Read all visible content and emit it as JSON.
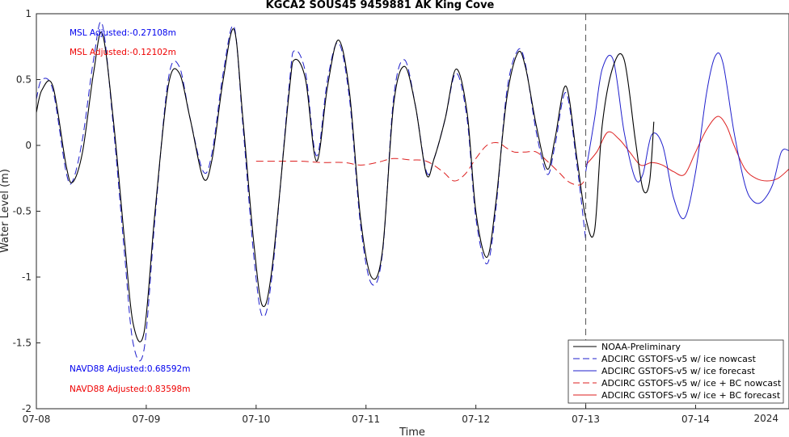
{
  "chart_data": {
    "type": "line",
    "title": "KGCA2 SOUS45 9459881 AK King Cove",
    "xlabel": "Time",
    "ylabel": "Water Level (m)",
    "xlim": [
      0,
      6.85
    ],
    "ylim": [
      -2,
      1
    ],
    "x_ticks": [
      {
        "value": 0,
        "label": "07-08"
      },
      {
        "value": 1,
        "label": "07-09"
      },
      {
        "value": 2,
        "label": "07-10"
      },
      {
        "value": 3,
        "label": "07-11"
      },
      {
        "value": 4,
        "label": "07-12"
      },
      {
        "value": 5,
        "label": "07-13"
      },
      {
        "value": 6,
        "label": "07-14"
      }
    ],
    "y_ticks": [
      {
        "value": 1,
        "label": "1"
      },
      {
        "value": 0.5,
        "label": "0.5"
      },
      {
        "value": 0,
        "label": "0"
      },
      {
        "value": -0.5,
        "label": "-0.5"
      },
      {
        "value": -1,
        "label": "-1"
      },
      {
        "value": -1.5,
        "label": "-1.5"
      },
      {
        "value": -2,
        "label": "-2"
      }
    ],
    "year_label": "2024",
    "nowcast_end": 5.0,
    "grid": false,
    "legend_position": "bottom-right",
    "annotations": [
      {
        "text": "MSL Adjusted:-0.27108m",
        "color": "#0000ee"
      },
      {
        "text": "MSL Adjusted:-0.12102m",
        "color": "#ee0000"
      },
      {
        "text": "NAVD88 Adjusted:0.68592m",
        "color": "#0000ee"
      },
      {
        "text": "NAVD88 Adjusted:0.83598m",
        "color": "#ee0000"
      }
    ],
    "series": [
      {
        "name": "NOAA-Preliminary",
        "color": "#000000",
        "dash": "solid",
        "width": 1.1,
        "x": [
          0,
          0.05,
          0.15,
          0.27,
          0.33,
          0.42,
          0.52,
          0.6,
          0.7,
          0.8,
          0.88,
          0.98,
          1.08,
          1.2,
          1.3,
          1.4,
          1.52,
          1.6,
          1.7,
          1.8,
          1.88,
          1.98,
          2.06,
          2.15,
          2.3,
          2.35,
          2.45,
          2.55,
          2.65,
          2.75,
          2.85,
          2.95,
          3.05,
          3.15,
          3.25,
          3.35,
          3.45,
          3.55,
          3.62,
          3.72,
          3.82,
          3.92,
          4.0,
          4.1,
          4.18,
          4.28,
          4.38,
          4.45,
          4.55,
          4.65,
          4.72,
          4.82,
          4.92,
          5.0,
          5.08,
          5.15,
          5.25,
          5.35,
          5.45,
          5.52,
          5.58,
          5.62
        ],
        "y": [
          0.25,
          0.42,
          0.45,
          -0.15,
          -0.28,
          -0.05,
          0.55,
          0.85,
          0.2,
          -0.7,
          -1.35,
          -1.42,
          -0.5,
          0.45,
          0.55,
          0.2,
          -0.25,
          -0.1,
          0.5,
          0.88,
          0.2,
          -0.75,
          -1.22,
          -0.9,
          0.4,
          0.65,
          0.5,
          -0.12,
          0.45,
          0.8,
          0.4,
          -0.55,
          -1.0,
          -0.8,
          0.3,
          0.6,
          0.3,
          -0.22,
          -0.1,
          0.2,
          0.58,
          0.25,
          -0.5,
          -0.85,
          -0.45,
          0.35,
          0.7,
          0.6,
          0.15,
          -0.18,
          0.05,
          0.45,
          -0.1,
          -0.55,
          -0.65,
          0.15,
          0.6,
          0.65,
          0.05,
          -0.33,
          -0.28,
          0.18
        ]
      },
      {
        "name": "ADCIRC GSTOFS-v5 w/ ice nowcast",
        "color": "#1f1fcc",
        "dash": "dashed",
        "width": 1.0,
        "x": [
          0,
          0.05,
          0.15,
          0.27,
          0.33,
          0.42,
          0.52,
          0.6,
          0.7,
          0.8,
          0.88,
          0.98,
          1.08,
          1.2,
          1.3,
          1.4,
          1.52,
          1.6,
          1.7,
          1.8,
          1.88,
          1.98,
          2.06,
          2.15,
          2.3,
          2.35,
          2.45,
          2.55,
          2.65,
          2.75,
          2.85,
          2.95,
          3.05,
          3.15,
          3.25,
          3.35,
          3.45,
          3.55,
          3.62,
          3.72,
          3.82,
          3.92,
          4.0,
          4.1,
          4.18,
          4.28,
          4.38,
          4.45,
          4.55,
          4.65,
          4.72,
          4.82,
          4.92,
          5.0
        ],
        "y": [
          0.35,
          0.5,
          0.42,
          -0.2,
          -0.27,
          0.05,
          0.65,
          0.92,
          0.15,
          -0.8,
          -1.5,
          -1.55,
          -0.55,
          0.5,
          0.6,
          0.2,
          -0.2,
          -0.05,
          0.55,
          0.9,
          0.15,
          -0.85,
          -1.3,
          -0.95,
          0.45,
          0.72,
          0.55,
          -0.08,
          0.5,
          0.78,
          0.35,
          -0.6,
          -1.05,
          -0.82,
          0.35,
          0.65,
          0.3,
          -0.2,
          -0.1,
          0.2,
          0.55,
          0.2,
          -0.55,
          -0.9,
          -0.5,
          0.4,
          0.72,
          0.62,
          0.1,
          -0.22,
          0.0,
          0.4,
          -0.15,
          -0.72
        ]
      },
      {
        "name": "ADCIRC GSTOFS-v5 w/ ice forecast",
        "color": "#1f1fcc",
        "dash": "solid",
        "width": 1.0,
        "x": [
          5.0,
          5.08,
          5.15,
          5.25,
          5.35,
          5.45,
          5.52,
          5.6,
          5.7,
          5.8,
          5.9,
          6.0,
          6.1,
          6.18,
          6.25,
          6.35,
          6.45,
          6.52,
          6.6,
          6.7,
          6.78,
          6.85
        ],
        "y": [
          -0.2,
          0.2,
          0.58,
          0.65,
          0.1,
          -0.25,
          -0.22,
          0.08,
          0.0,
          -0.4,
          -0.55,
          -0.2,
          0.4,
          0.68,
          0.62,
          0.1,
          -0.3,
          -0.42,
          -0.43,
          -0.3,
          -0.05,
          -0.04
        ]
      },
      {
        "name": "ADCIRC GSTOFS-v5 w/ ice + BC nowcast",
        "color": "#dd1f1f",
        "dash": "dashed",
        "width": 1.0,
        "x": [
          2.0,
          2.2,
          2.4,
          2.6,
          2.8,
          2.95,
          3.1,
          3.25,
          3.4,
          3.55,
          3.7,
          3.8,
          3.9,
          4.0,
          4.1,
          4.2,
          4.28,
          4.35,
          4.45,
          4.55,
          4.65,
          4.75,
          4.85,
          4.95,
          5.0
        ],
        "y": [
          -0.12,
          -0.12,
          -0.12,
          -0.13,
          -0.13,
          -0.15,
          -0.13,
          -0.1,
          -0.11,
          -0.12,
          -0.2,
          -0.27,
          -0.22,
          -0.1,
          0.0,
          0.02,
          -0.02,
          -0.05,
          -0.05,
          -0.05,
          -0.12,
          -0.2,
          -0.28,
          -0.3,
          -0.25
        ]
      },
      {
        "name": "ADCIRC GSTOFS-v5 w/ ice + BC forecast",
        "color": "#dd1f1f",
        "dash": "solid",
        "width": 1.0,
        "x": [
          5.0,
          5.1,
          5.2,
          5.3,
          5.4,
          5.5,
          5.6,
          5.7,
          5.8,
          5.9,
          6.0,
          6.1,
          6.2,
          6.28,
          6.35,
          6.45,
          6.55,
          6.65,
          6.75,
          6.85
        ],
        "y": [
          -0.15,
          -0.05,
          0.1,
          0.05,
          -0.05,
          -0.15,
          -0.13,
          -0.15,
          -0.2,
          -0.22,
          -0.05,
          0.12,
          0.22,
          0.15,
          0.0,
          -0.18,
          -0.25,
          -0.27,
          -0.25,
          -0.18
        ]
      }
    ]
  }
}
